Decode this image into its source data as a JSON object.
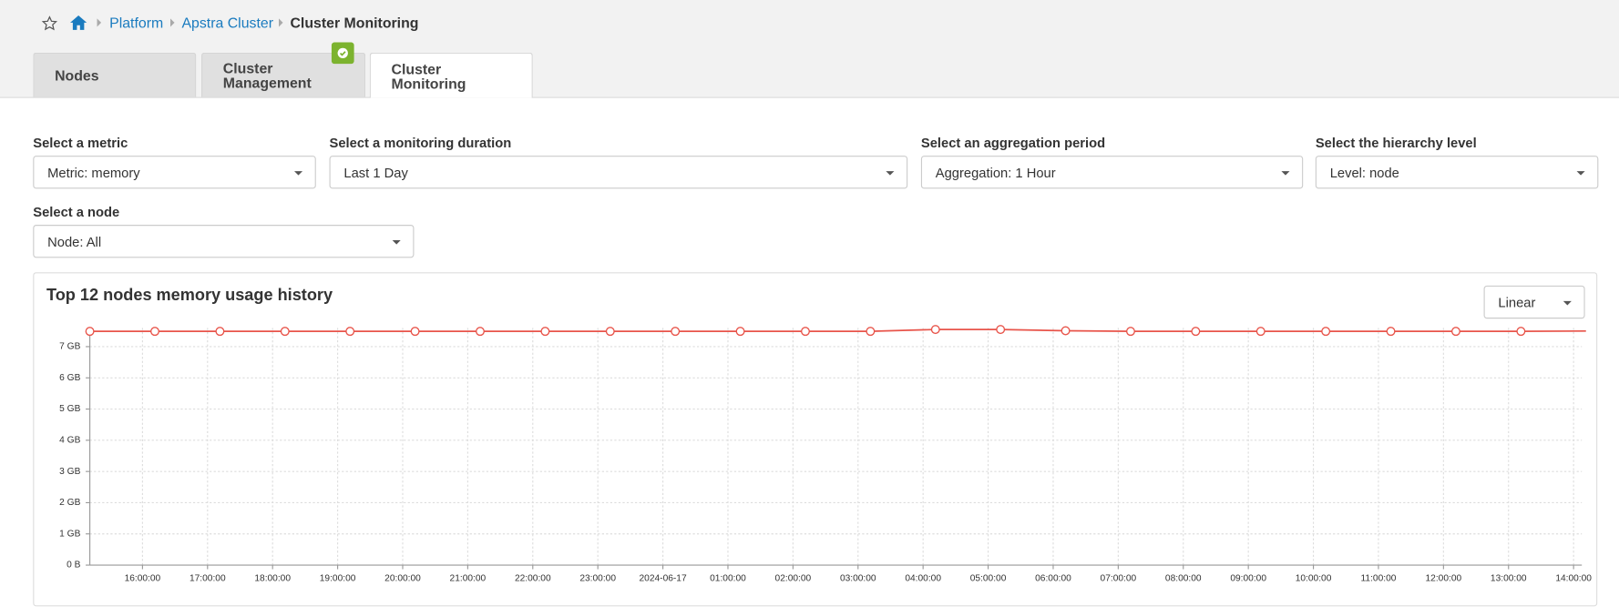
{
  "breadcrumb": [
    "Platform",
    "Apstra Cluster",
    "Cluster Monitoring"
  ],
  "tabs": [
    {
      "label": "Nodes"
    },
    {
      "label": "Cluster Management"
    },
    {
      "label": "Cluster Monitoring"
    }
  ],
  "filters": [
    {
      "label": "Select a metric",
      "value": "Metric: memory"
    },
    {
      "label": "Select a monitoring duration",
      "value": "Last 1 Day"
    },
    {
      "label": "Select an aggregation period",
      "value": "Aggregation: 1 Hour"
    },
    {
      "label": "Select the hierarchy level",
      "value": "Level: node"
    },
    {
      "label": "Select a node",
      "value": "Node: All"
    }
  ],
  "scale_select": "Linear",
  "chart_data": {
    "type": "line",
    "title": "Top 12 nodes memory usage history",
    "categories": [
      null,
      "16:00:00",
      "17:00:00",
      "18:00:00",
      "19:00:00",
      "20:00:00",
      "21:00:00",
      "22:00:00",
      "23:00:00",
      "2024-06-17",
      "01:00:00",
      "02:00:00",
      "03:00:00",
      "04:00:00",
      "05:00:00",
      "06:00:00",
      "07:00:00",
      "08:00:00",
      "09:00:00",
      "10:00:00",
      "11:00:00",
      "12:00:00",
      "13:00:00",
      "14:00:00"
    ],
    "series": [
      {
        "name": "memory",
        "color": "#e8544a",
        "values": [
          7.49,
          7.49,
          7.49,
          7.49,
          7.49,
          7.49,
          7.49,
          7.49,
          7.49,
          7.49,
          7.49,
          7.49,
          7.49,
          7.55,
          7.55,
          7.51,
          7.49,
          7.49,
          7.49,
          7.49,
          7.49,
          7.49,
          7.49,
          7.5
        ]
      }
    ],
    "ylim": [
      0,
      7.6
    ],
    "yticks": [
      {
        "value": 0,
        "label": "0 B"
      },
      {
        "value": 1,
        "label": "1 GB"
      },
      {
        "value": 2,
        "label": "2 GB"
      },
      {
        "value": 3,
        "label": "3 GB"
      },
      {
        "value": 4,
        "label": "4 GB"
      },
      {
        "value": 5,
        "label": "5 GB"
      },
      {
        "value": 6,
        "label": "6 GB"
      },
      {
        "value": 7,
        "label": "7 GB"
      }
    ],
    "grid": true
  }
}
